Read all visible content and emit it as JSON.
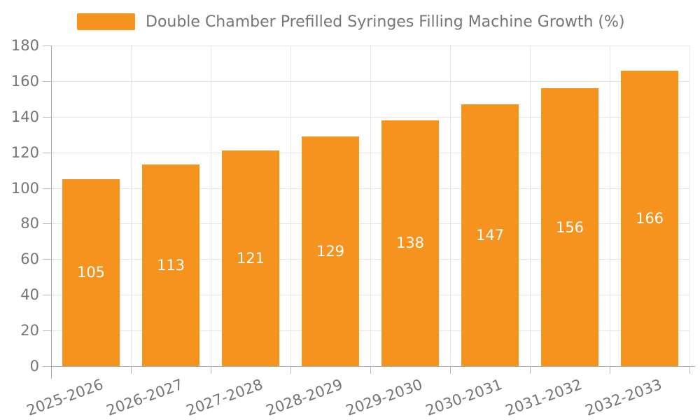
{
  "chart_data": {
    "type": "bar",
    "title": "Double Chamber Prefilled Syringes Filling Machine Growth (%)",
    "categories": [
      "2025-2026",
      "2026-2027",
      "2027-2028",
      "2028-2029",
      "2029-2030",
      "2030-2031",
      "2031-2032",
      "2032-2033"
    ],
    "values": [
      105,
      113,
      121,
      129,
      138,
      147,
      156,
      166
    ],
    "xlabel": "",
    "ylabel": "",
    "ylim": [
      0,
      180
    ],
    "ytick_step": 20,
    "ytick_labels": [
      "0",
      "20",
      "40",
      "60",
      "80",
      "100",
      "120",
      "140",
      "160",
      "180"
    ],
    "grid": true,
    "legend_position": "top-left",
    "value_labels": "inside-center"
  },
  "colors": {
    "bar": "#F6921E",
    "axis_text": "#757575",
    "legend_text": "#757575",
    "gridline": "#E6E6E6",
    "axis_line": "#A9A9A9",
    "tick": "#BDBDBD",
    "value_label": "#FFFFFF",
    "background": "#FFFFFF"
  }
}
